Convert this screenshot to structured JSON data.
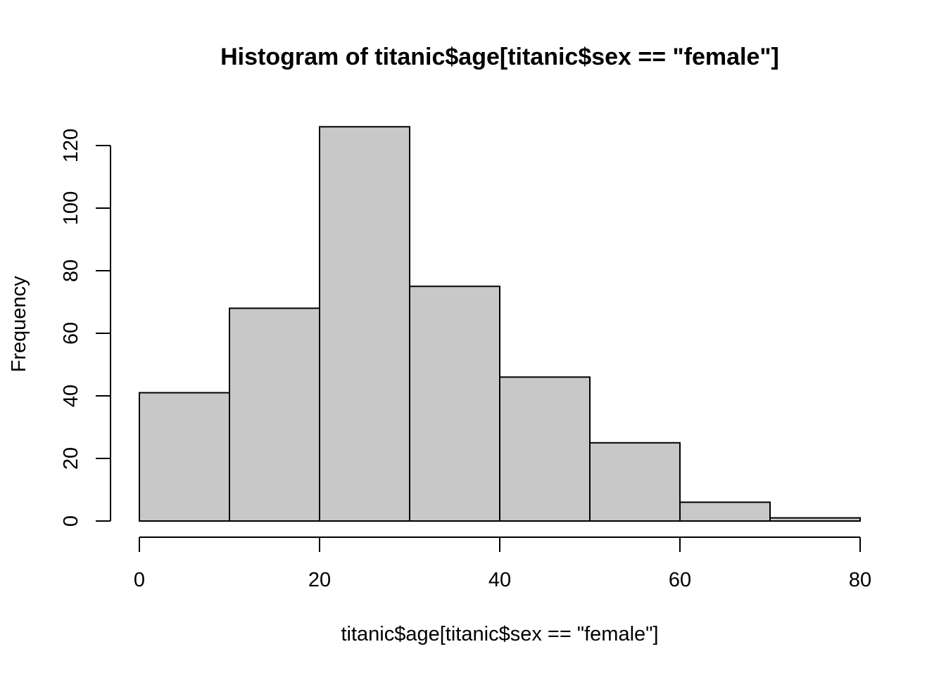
{
  "chart_data": {
    "type": "bar",
    "title": "Histogram of titanic$age[titanic$sex == \"female\"]",
    "xlabel": "titanic$age[titanic$sex == \"female\"]",
    "ylabel": "Frequency",
    "bin_edges": [
      0,
      10,
      20,
      30,
      40,
      50,
      60,
      70,
      80
    ],
    "values": [
      41,
      68,
      126,
      75,
      46,
      25,
      6,
      1
    ],
    "xlim": [
      0,
      80
    ],
    "ylim": [
      0,
      120
    ],
    "x_ticks": [
      "0",
      "20",
      "40",
      "60",
      "80"
    ],
    "y_ticks": [
      "0",
      "20",
      "40",
      "60",
      "80",
      "100",
      "120"
    ],
    "bar_color": "#c8c8c8",
    "border_color": "#000000",
    "grid": false,
    "legend": "none"
  }
}
